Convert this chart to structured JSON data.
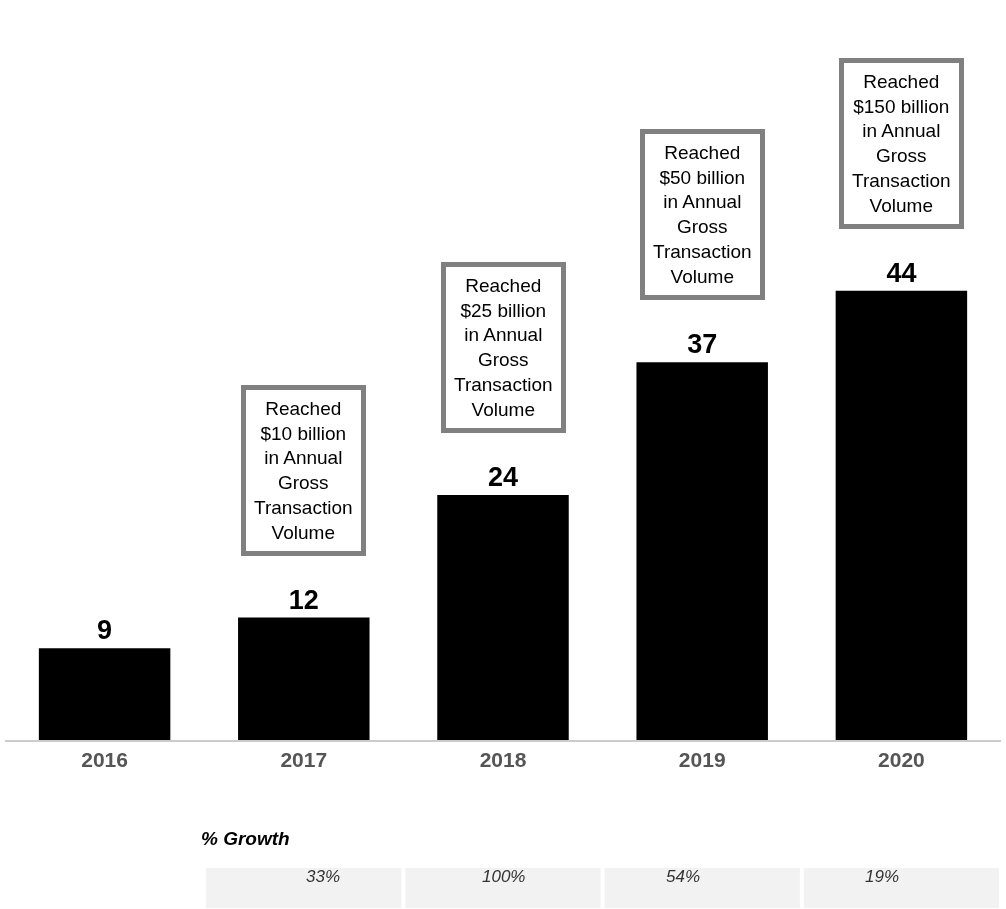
{
  "chart_data": {
    "type": "bar",
    "categories": [
      "2016",
      "2017",
      "2018",
      "2019",
      "2020"
    ],
    "values": [
      9,
      12,
      24,
      37,
      44
    ],
    "color": "#000000",
    "data_labels": true,
    "ylim": [
      0,
      72
    ],
    "tick_labels": "x",
    "annotations": [
      "Reached\n$10 billion\nin Annual\nGross\nTransaction\nVolume",
      "Reached\n$25 billion\nin Annual\nGross\nTransaction\nVolume",
      "Reached\n$50 billion\nin Annual\nGross\nTransaction\nVolume",
      "Reached\n$150 billion\nin Annual\nGross\nTransaction\nVolume",
      "% Growth",
      "33%",
      "100%",
      "54%",
      "19%"
    ]
  }
}
